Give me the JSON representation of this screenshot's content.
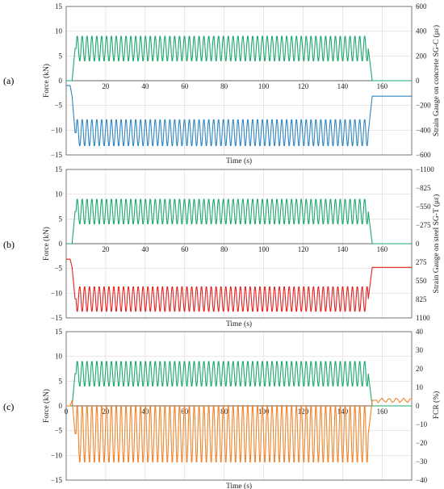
{
  "figure": {
    "panels": [
      {
        "label": "(a)",
        "right_axis_title": "Strain Gauge on concrete SG-C (με)"
      },
      {
        "label": "(b)",
        "right_axis_title": "Strain Gauge on steel SG-T (με)"
      },
      {
        "label": "(c)",
        "right_axis_title": "FCR (%)"
      }
    ]
  },
  "colors": {
    "force": "#1aa86b",
    "strain_concrete": "#2f86c0",
    "strain_steel": "#e3231f",
    "fcr": "#f0852d",
    "grid": "#d9d9d9",
    "axis": "#555555"
  },
  "chart_data": [
    {
      "type": "line",
      "panel": "(a)",
      "xlabel": "Time (s)",
      "ylabel": "Force (kN)",
      "y2label": "Strain Gauge on concrete SG-C (με)",
      "xlim": [
        0,
        175
      ],
      "ylim": [
        -15,
        15
      ],
      "y2lim": [
        -600,
        600
      ],
      "xticks": [
        20,
        40,
        60,
        80,
        100,
        120,
        140,
        160
      ],
      "yticks": [
        15,
        10,
        5,
        0,
        -5,
        -10,
        -15
      ],
      "y2ticks": [
        600,
        400,
        200,
        0,
        -200,
        -400,
        -600
      ],
      "grid": true,
      "x_ticks_on_zero_line": true,
      "series": [
        {
          "name": "Force",
          "axis": "left",
          "color": "#1aa86b",
          "baseline": 0,
          "hold": null,
          "mean": 6.5,
          "amplitude": 2.6,
          "cycles": 60,
          "t_start": 3,
          "t_end": 155
        },
        {
          "name": "SG-C",
          "axis": "right",
          "color": "#2f86c0",
          "baseline": -40,
          "hold": -125,
          "mean": -420,
          "amplitude": 110,
          "cycles": 60,
          "t_start": 3,
          "t_end": 155
        }
      ]
    },
    {
      "type": "line",
      "panel": "(b)",
      "xlabel": "Time (s)",
      "ylabel": "Force (kN)",
      "y2label": "Strain Gauge on steel SG-T (με)",
      "xlim": [
        0,
        175
      ],
      "ylim": [
        -15,
        15
      ],
      "y2lim": [
        1100,
        -1100
      ],
      "xticks": [
        20,
        40,
        60,
        80,
        100,
        120,
        140,
        160
      ],
      "yticks": [
        15,
        10,
        5,
        0,
        -5,
        -10,
        -15
      ],
      "y2ticks": [
        "−1100",
        "−825",
        "−550",
        "−275",
        "0",
        "275",
        "550",
        "825",
        "1100"
      ],
      "grid": true,
      "x_ticks_on_zero_line": true,
      "series": [
        {
          "name": "Force",
          "axis": "left",
          "color": "#1aa86b",
          "baseline": 0,
          "hold": null,
          "mean": 6.5,
          "amplitude": 2.6,
          "cycles": 60,
          "t_start": 3,
          "t_end": 155
        },
        {
          "name": "SG-T",
          "axis": "right",
          "color": "#e3231f",
          "baseline": 230,
          "hold": 350,
          "mean": 820,
          "amplitude": 190,
          "cycles": 60,
          "t_start": 3,
          "t_end": 155
        }
      ]
    },
    {
      "type": "line",
      "panel": "(c)",
      "xlabel": "Time (s)",
      "ylabel": "Force (kN)",
      "y2label": "FCR (%)",
      "xlim": [
        0,
        175
      ],
      "ylim": [
        -15,
        15
      ],
      "y2lim": [
        -40,
        40
      ],
      "xticks": [
        0,
        20,
        40,
        60,
        80,
        100,
        120,
        140,
        160
      ],
      "yticks": [
        15,
        10,
        5,
        0,
        -5,
        -10,
        -15
      ],
      "y2ticks": [
        40,
        30,
        20,
        10,
        0,
        -10,
        -20,
        -30,
        -40
      ],
      "grid": true,
      "x_ticks_on_zero_line": true,
      "series": [
        {
          "name": "Force",
          "axis": "left",
          "color": "#1aa86b",
          "baseline": 0,
          "hold": null,
          "mean": 6.5,
          "amplitude": 2.6,
          "cycles": 60,
          "t_start": 3,
          "t_end": 155
        },
        {
          "name": "FCR",
          "axis": "right",
          "color": "#f0852d",
          "baseline": 0,
          "hold": 3,
          "mean": -15,
          "amplitude": 16,
          "cycles": 60,
          "t_start": 3,
          "t_end": 155,
          "post_noise": 1.2
        }
      ]
    }
  ]
}
